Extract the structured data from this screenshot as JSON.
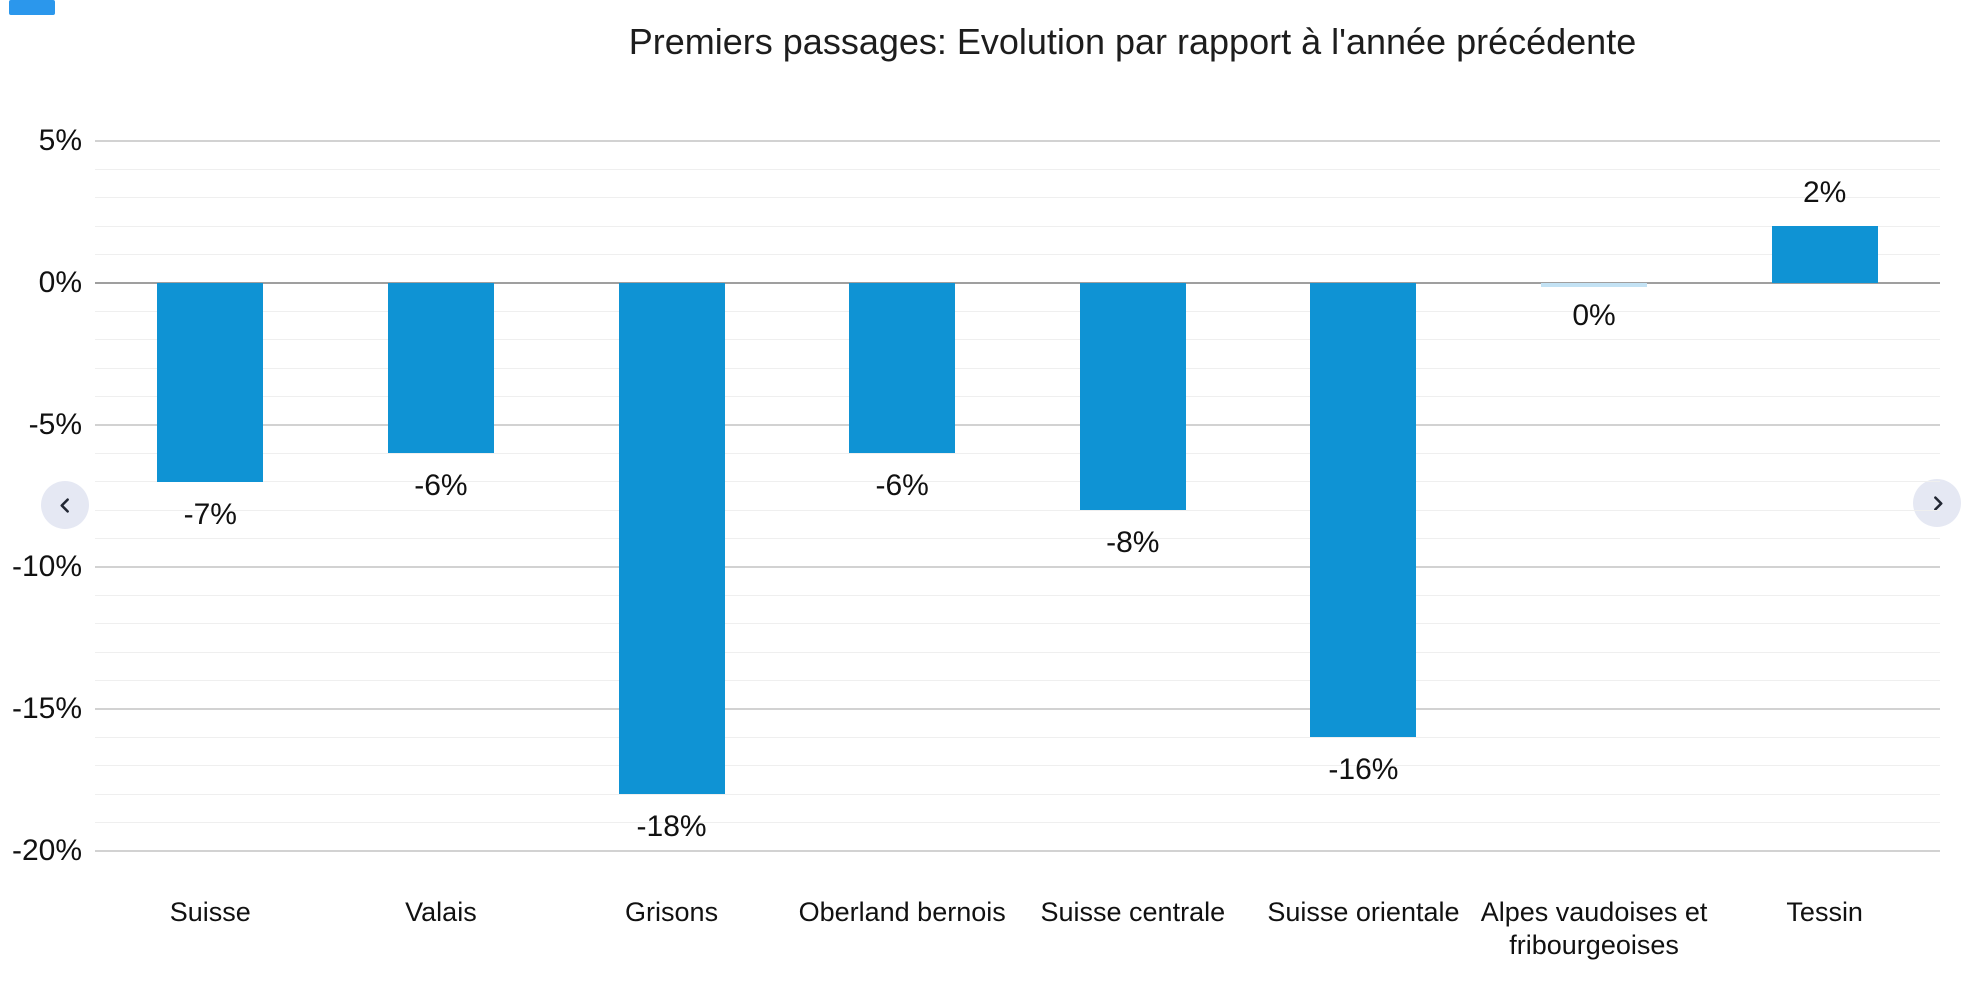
{
  "corner_badge": {
    "color": "#2b97ec"
  },
  "chart_data": {
    "type": "bar",
    "title": "Premiers passages: Evolution par rapport à l'année précédente",
    "categories": [
      "Suisse",
      "Valais",
      "Grisons",
      "Oberland bernois",
      "Suisse centrale",
      "Suisse orientale",
      "Alpes vaudoises et fribourgeoises",
      "Tessin"
    ],
    "values": [
      -7,
      -6,
      -18,
      -6,
      -8,
      -16,
      0,
      2
    ],
    "bar_labels": [
      "-7%",
      "-6%",
      "-18%",
      "-6%",
      "-8%",
      "-16%",
      "0%",
      "2%"
    ],
    "xlabel": "",
    "ylabel": "",
    "y_axis": {
      "tick_labels": [
        "5%",
        "0%",
        "-5%",
        "-10%",
        "-15%",
        "-20%"
      ],
      "tick_values": [
        5,
        0,
        -5,
        -10,
        -15,
        -20
      ],
      "ylim": [
        -20,
        5
      ],
      "minor_step": 1,
      "grid": true
    },
    "legend": "none",
    "series_color": "#0f93d4",
    "zero_bar_color": "#c3e2f4"
  },
  "carousel": {
    "prev_icon": "chevron-left",
    "next_icon": "chevron-right"
  },
  "colors": {
    "grid_minor": "#efefef",
    "grid_major": "#d2d2d2",
    "zero_line": "#9f9f9f",
    "text": "#111111",
    "nav_background": "#e5e8f3",
    "nav_icon": "#222733"
  }
}
